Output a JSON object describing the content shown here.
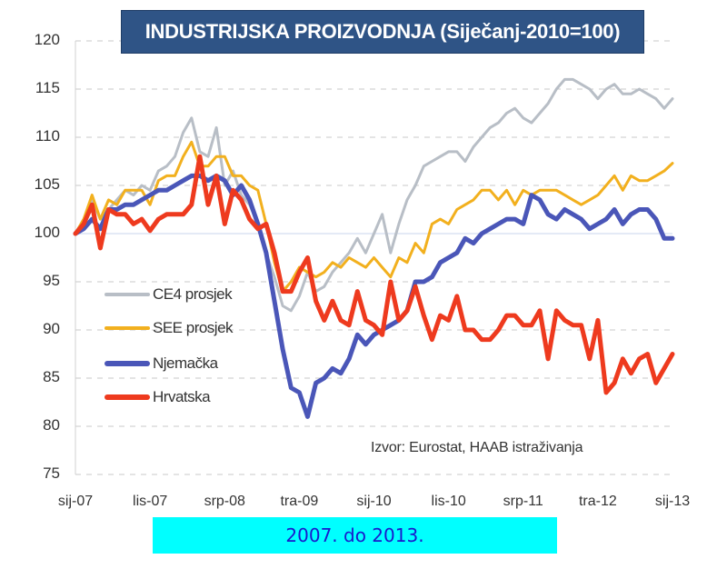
{
  "chart_data": {
    "type": "line",
    "title": "INDUSTRIJSKA PROIZVODNJA (Siječanj-2010=100)",
    "xlabel": "",
    "ylabel": "",
    "ylim": [
      75,
      120
    ],
    "yticks": [
      "120",
      "115",
      "110",
      "105",
      "100",
      "95",
      "90",
      "85",
      "80",
      "75"
    ],
    "ytick_values": [
      120,
      115,
      110,
      105,
      100,
      95,
      90,
      85,
      80,
      75
    ],
    "x_tick_labels": [
      "sij-07",
      "lis-07",
      "srp-08",
      "tra-09",
      "sij-10",
      "lis-10",
      "srp-11",
      "tra-12",
      "sij-13"
    ],
    "x_tick_month_index": [
      0,
      9,
      18,
      27,
      36,
      45,
      54,
      63,
      72
    ],
    "x_period": "monthly, Jan 2007 - Jan 2013",
    "grid": "horizontal dashed",
    "legend_position": "middle-left",
    "annotation": "Izvor: Eurostat, HAAB istraživanja",
    "series": [
      {
        "name": "CE4 prosjek",
        "color": "#b8bec6",
        "values": [
          100,
          101.5,
          103.5,
          101.5,
          102.5,
          103.5,
          104.5,
          104,
          105,
          104.5,
          106.5,
          107,
          108,
          110.5,
          112,
          108.5,
          108,
          111,
          105,
          106.5,
          104,
          103,
          101,
          98,
          95.5,
          92.5,
          92,
          93.5,
          96,
          94,
          94.5,
          96,
          97,
          98,
          99.5,
          98,
          100,
          102,
          98,
          101,
          103.5,
          105,
          107,
          107.5,
          108,
          108.5,
          108.5,
          107.5,
          109,
          110,
          111,
          111.5,
          112.5,
          113,
          112,
          111.5,
          112.5,
          113.5,
          115,
          116,
          116,
          115.5,
          115,
          114,
          115,
          115.5,
          114.5,
          114.5,
          115,
          114.5,
          114,
          113,
          114
        ]
      },
      {
        "name": "SEE prosjek",
        "color": "#f2b01e",
        "values": [
          100,
          101.5,
          104,
          101.5,
          103.5,
          103,
          104.5,
          104.5,
          104.5,
          103,
          105.5,
          106,
          106,
          108,
          109.5,
          107,
          107,
          108,
          108,
          106,
          106,
          105,
          104.5,
          101,
          97,
          94,
          95,
          96.5,
          96,
          95.5,
          96,
          97,
          96.5,
          97.5,
          97,
          96.5,
          97.5,
          96.5,
          95.5,
          97.5,
          97,
          99,
          98,
          101,
          101.5,
          101,
          102.5,
          103,
          103.5,
          104.5,
          104.5,
          103.5,
          104.5,
          103,
          104.5,
          104,
          104.5,
          104.5,
          104.5,
          104,
          103.5,
          103,
          103.5,
          104,
          105,
          106,
          104.5,
          106,
          105.5,
          105.5,
          106,
          106.5,
          107.3
        ]
      },
      {
        "name": "Njemačka",
        "color": "#4a56b8",
        "values": [
          100,
          100.5,
          101.5,
          100.5,
          102.5,
          102.5,
          103,
          103,
          103.5,
          104,
          104.5,
          104.5,
          105,
          105.5,
          106,
          106,
          105.5,
          106,
          105.5,
          104,
          105,
          103.5,
          101,
          98,
          93,
          88,
          84,
          83.5,
          81,
          84.5,
          85,
          86,
          85.5,
          87,
          89.5,
          88.5,
          89.5,
          90,
          90.5,
          91,
          92,
          95,
          95,
          95.5,
          97,
          97.5,
          98,
          99.5,
          99,
          100,
          100.5,
          101,
          101.5,
          101.5,
          101,
          104,
          103.5,
          102,
          101.5,
          102.5,
          102,
          101.5,
          100.5,
          101,
          101.5,
          102.5,
          101,
          102,
          102.5,
          102.5,
          101.5,
          99.5,
          99.5
        ]
      },
      {
        "name": "Hrvatska",
        "color": "#ee3a1e",
        "values": [
          100,
          101,
          103,
          98.5,
          102.5,
          102,
          102,
          101,
          101.5,
          100.3,
          101.5,
          102,
          102,
          102,
          103,
          108,
          103,
          106,
          101,
          104.5,
          103.5,
          101.5,
          100.5,
          101,
          98,
          94,
          94,
          96,
          97.5,
          93,
          91,
          93,
          91,
          90.5,
          94,
          91,
          90.5,
          89.5,
          95,
          91,
          92,
          94.5,
          91.5,
          89,
          91.5,
          91,
          93.5,
          90,
          90,
          89,
          89,
          90,
          91.5,
          91.5,
          90.5,
          90.5,
          92,
          87,
          92,
          91,
          90.5,
          90.5,
          87,
          91,
          83.5,
          84.5,
          87,
          85.5,
          87,
          87.5,
          84.5,
          86,
          87.5
        ]
      }
    ]
  },
  "caption": "2007. do 2013."
}
